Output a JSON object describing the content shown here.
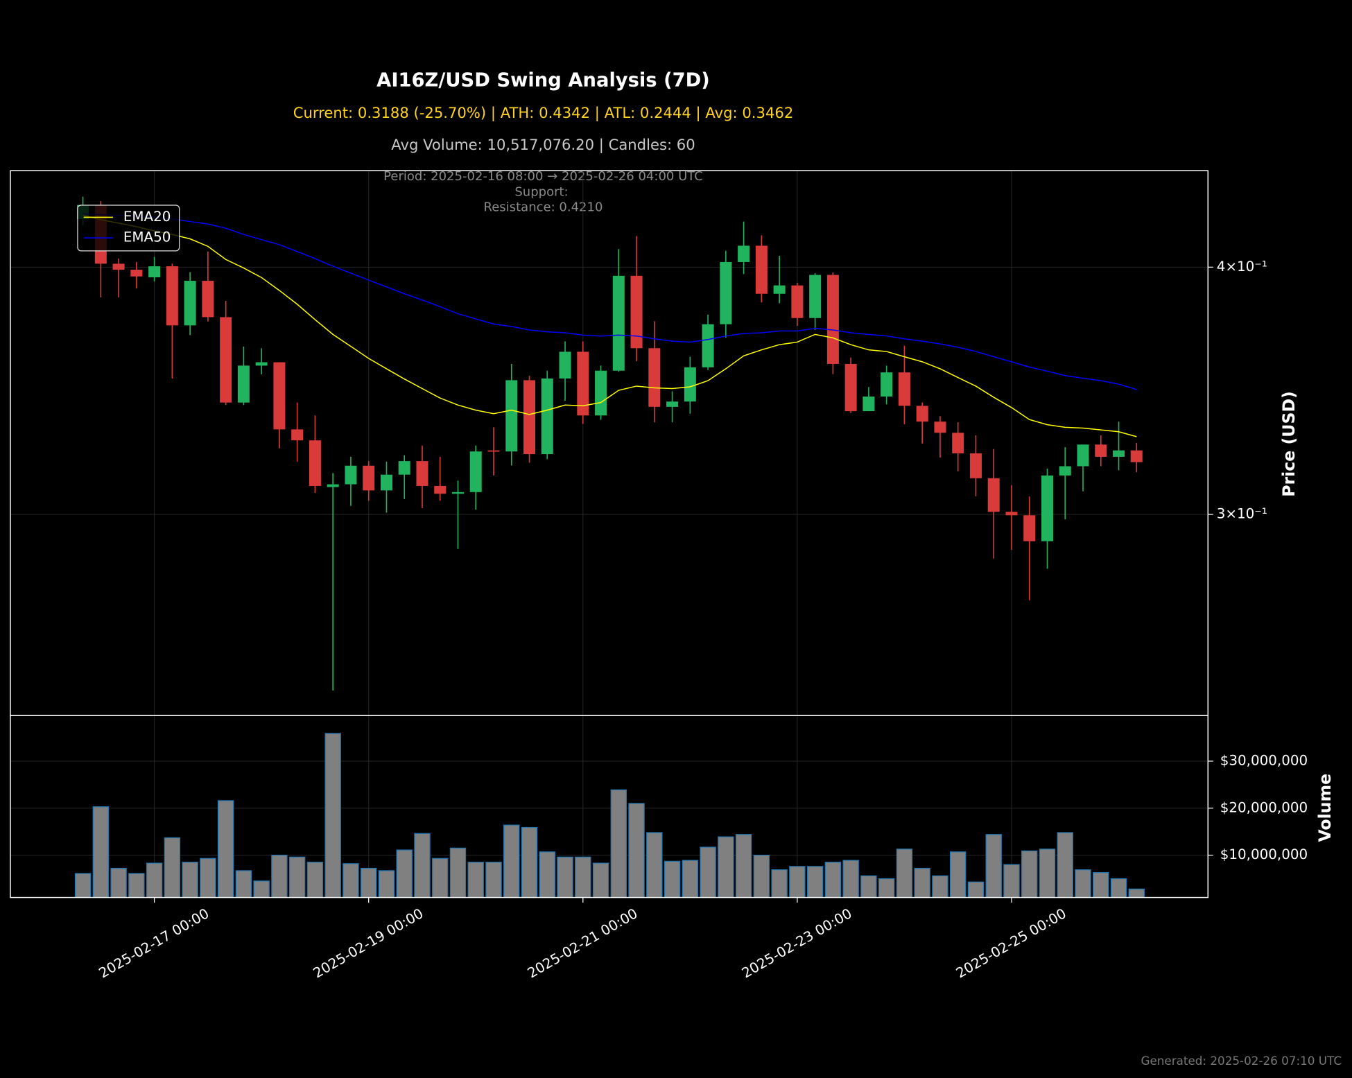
{
  "chart_data": {
    "type": "candlestick",
    "title": "AI16Z/USD Swing Analysis (7D)",
    "subtitle": "Current: 0.3188 (-25.70%) | ATH: 0.4342 | ATL: 0.2444 | Avg: 0.3462",
    "subtitle2": "Avg Volume: 10,517,076.20 | Candles: 60",
    "annotation": [
      "Period: 2025-02-16 08:00 → 2025-02-26 04:00 UTC",
      "Support:",
      "Resistance: 0.4210"
    ],
    "ylabel": "Price (USD)",
    "x": [
      "2025-02-16 08:00",
      "2025-02-16 12:00",
      "2025-02-16 16:00",
      "2025-02-16 20:00",
      "2025-02-17 00:00",
      "2025-02-17 04:00",
      "2025-02-17 08:00",
      "2025-02-17 12:00",
      "2025-02-17 16:00",
      "2025-02-17 20:00",
      "2025-02-18 00:00",
      "2025-02-18 04:00",
      "2025-02-18 08:00",
      "2025-02-18 12:00",
      "2025-02-18 16:00",
      "2025-02-18 20:00",
      "2025-02-19 00:00",
      "2025-02-19 04:00",
      "2025-02-19 08:00",
      "2025-02-19 12:00",
      "2025-02-19 16:00",
      "2025-02-19 20:00",
      "2025-02-20 00:00",
      "2025-02-20 04:00",
      "2025-02-20 08:00",
      "2025-02-20 12:00",
      "2025-02-20 16:00",
      "2025-02-20 20:00",
      "2025-02-21 00:00",
      "2025-02-21 04:00",
      "2025-02-21 08:00",
      "2025-02-21 12:00",
      "2025-02-21 16:00",
      "2025-02-21 20:00",
      "2025-02-22 00:00",
      "2025-02-22 04:00",
      "2025-02-22 08:00",
      "2025-02-22 12:00",
      "2025-02-22 16:00",
      "2025-02-22 20:00",
      "2025-02-23 00:00",
      "2025-02-23 04:00",
      "2025-02-23 08:00",
      "2025-02-23 12:00",
      "2025-02-23 16:00",
      "2025-02-23 20:00",
      "2025-02-24 00:00",
      "2025-02-24 04:00",
      "2025-02-24 08:00",
      "2025-02-24 12:00",
      "2025-02-24 16:00",
      "2025-02-24 20:00",
      "2025-02-25 00:00",
      "2025-02-25 04:00",
      "2025-02-25 08:00",
      "2025-02-25 12:00",
      "2025-02-25 16:00",
      "2025-02-25 20:00",
      "2025-02-26 00:00",
      "2025-02-26 04:00"
    ],
    "open": [
      0.423,
      0.43,
      0.4016,
      0.3988,
      0.3953,
      0.4004,
      0.3738,
      0.3937,
      0.3774,
      0.3417,
      0.3567,
      0.3581,
      0.3312,
      0.327,
      0.3097,
      0.3107,
      0.3175,
      0.3085,
      0.3142,
      0.3192,
      0.3101,
      0.3073,
      0.3079,
      0.3232,
      0.3228,
      0.3507,
      0.3218,
      0.3514,
      0.3625,
      0.3366,
      0.3546,
      0.396,
      0.364,
      0.34,
      0.3421,
      0.356,
      0.3743,
      0.4024,
      0.4101,
      0.3878,
      0.3916,
      0.377,
      0.3964,
      0.3574,
      0.3383,
      0.3441,
      0.3539,
      0.3404,
      0.3342,
      0.3299,
      0.3221,
      0.3129,
      0.3009,
      0.2997,
      0.2908,
      0.3139,
      0.3173,
      0.3254,
      0.3208,
      0.3232
    ],
    "high": [
      0.4342,
      0.432,
      0.404,
      0.4024,
      0.4048,
      0.4016,
      0.3977,
      0.4073,
      0.3846,
      0.3647,
      0.364,
      0.3581,
      0.3417,
      0.3366,
      0.3148,
      0.3208,
      0.3192,
      0.319,
      0.3214,
      0.325,
      0.3208,
      0.312,
      0.325,
      0.332,
      0.3574,
      0.3525,
      0.3546,
      0.3669,
      0.3669,
      0.3567,
      0.4085,
      0.4147,
      0.3756,
      0.3462,
      0.3604,
      0.3785,
      0.4077,
      0.4218,
      0.4151,
      0.4053,
      0.3928,
      0.3972,
      0.3976,
      0.3601,
      0.3479,
      0.3567,
      0.3651,
      0.3417,
      0.3363,
      0.3339,
      0.3289,
      0.3237,
      0.3104,
      0.3063,
      0.3164,
      0.3244,
      0.3254,
      0.3289,
      0.3342,
      0.326
    ],
    "low": [
      0.42,
      0.3862,
      0.3862,
      0.3902,
      0.3934,
      0.3514,
      0.3696,
      0.3755,
      0.3407,
      0.3407,
      0.3531,
      0.324,
      0.319,
      0.3076,
      0.2444,
      0.303,
      0.3048,
      0.3006,
      0.3054,
      0.3022,
      0.3048,
      0.2882,
      0.3016,
      0.3139,
      0.3176,
      0.3186,
      0.3199,
      0.3424,
      0.3333,
      0.3349,
      0.3542,
      0.3585,
      0.3339,
      0.3339,
      0.3373,
      0.3549,
      0.3685,
      0.3968,
      0.3839,
      0.3835,
      0.3736,
      0.3718,
      0.3532,
      0.3376,
      0.3383,
      0.341,
      0.3332,
      0.3258,
      0.3205,
      0.3154,
      0.3064,
      0.285,
      0.2879,
      0.2715,
      0.2816,
      0.2983,
      0.3082,
      0.3173,
      0.3158,
      0.3151
    ],
    "close": [
      0.43,
      0.4016,
      0.3988,
      0.3957,
      0.4004,
      0.3738,
      0.3937,
      0.3774,
      0.3417,
      0.3567,
      0.3581,
      0.3312,
      0.327,
      0.3101,
      0.3107,
      0.3175,
      0.3085,
      0.3142,
      0.3192,
      0.3101,
      0.3073,
      0.3079,
      0.3228,
      0.3228,
      0.3507,
      0.3218,
      0.3514,
      0.3625,
      0.3366,
      0.3546,
      0.396,
      0.364,
      0.34,
      0.3421,
      0.356,
      0.3743,
      0.4024,
      0.4101,
      0.3878,
      0.3916,
      0.377,
      0.3964,
      0.3574,
      0.3383,
      0.3441,
      0.3539,
      0.3404,
      0.3342,
      0.3299,
      0.3221,
      0.3129,
      0.3009,
      0.2997,
      0.2908,
      0.3139,
      0.3173,
      0.3254,
      0.3208,
      0.3232,
      0.3188
    ],
    "up_color": "#22b35e",
    "down_color": "#d93a3a",
    "series": [
      {
        "name": "EMA20",
        "color": "#ffff00",
        "values": [
          0.4248,
          0.4227,
          0.421,
          0.4193,
          0.4172,
          0.4155,
          0.4134,
          0.4098,
          0.4036,
          0.3996,
          0.3952,
          0.3893,
          0.3831,
          0.3763,
          0.3699,
          0.3648,
          0.3597,
          0.3554,
          0.3512,
          0.3473,
          0.3435,
          0.3407,
          0.3387,
          0.3373,
          0.3387,
          0.337,
          0.3387,
          0.3407,
          0.3404,
          0.3417,
          0.3466,
          0.3483,
          0.3476,
          0.3473,
          0.348,
          0.3505,
          0.3554,
          0.3608,
          0.3633,
          0.3655,
          0.3666,
          0.3699,
          0.3684,
          0.3655,
          0.3633,
          0.3626,
          0.3604,
          0.3583,
          0.3554,
          0.3518,
          0.3483,
          0.3438,
          0.3397,
          0.335,
          0.333,
          0.332,
          0.3317,
          0.331,
          0.3303,
          0.3284
        ]
      },
      {
        "name": "EMA50",
        "color": "#0000ff",
        "values": [
          0.4256,
          0.4252,
          0.4248,
          0.4244,
          0.424,
          0.4231,
          0.4218,
          0.4206,
          0.4185,
          0.4155,
          0.413,
          0.4106,
          0.4073,
          0.404,
          0.4004,
          0.3972,
          0.394,
          0.3909,
          0.3878,
          0.385,
          0.382,
          0.3789,
          0.3766,
          0.3744,
          0.3733,
          0.3718,
          0.371,
          0.3706,
          0.3696,
          0.3692,
          0.3696,
          0.3692,
          0.368,
          0.367,
          0.3666,
          0.3677,
          0.3692,
          0.3703,
          0.3706,
          0.3714,
          0.3714,
          0.3725,
          0.3718,
          0.3706,
          0.3699,
          0.3692,
          0.368,
          0.367,
          0.3658,
          0.3644,
          0.3626,
          0.3604,
          0.3583,
          0.3561,
          0.3544,
          0.3526,
          0.3515,
          0.3505,
          0.3491,
          0.3469
        ]
      }
    ],
    "xlim": [
      "2025-02-15 15:45",
      "2025-02-26 20:00"
    ],
    "xticks": [
      "2025-02-17 00:00",
      "2025-02-19 00:00",
      "2025-02-21 00:00",
      "2025-02-23 00:00",
      "2025-02-25 00:00"
    ],
    "ylim": [
      0.2374,
      0.4475
    ],
    "log_y": true,
    "yticks": [
      {
        "value": 0.3,
        "label": "3×10⁻¹"
      },
      {
        "value": 0.4,
        "label": "4×10⁻¹"
      }
    ],
    "grid": true,
    "legend": "upper left",
    "volume": {
      "ylabel": "Volume",
      "color": "#808080",
      "edge_color": "#1f77b4",
      "values": [
        6100000,
        20300000,
        7200000,
        6100000,
        8300000,
        13700000,
        8500000,
        9300000,
        21600000,
        6700000,
        4500000,
        10000000,
        9600000,
        8500000,
        35900000,
        8200000,
        7200000,
        6700000,
        11100000,
        14600000,
        9300000,
        11500000,
        8500000,
        8500000,
        16400000,
        15900000,
        10700000,
        9600000,
        9600000,
        8300000,
        23900000,
        21000000,
        14800000,
        8700000,
        8900000,
        11700000,
        13900000,
        14400000,
        10000000,
        6900000,
        7600000,
        7600000,
        8500000,
        8900000,
        5600000,
        5000000,
        11300000,
        7200000,
        5600000,
        10700000,
        4300000,
        14400000,
        8000000,
        10900000,
        11300000,
        14800000,
        6900000,
        6300000,
        5000000,
        2800000
      ],
      "ylim": [
        1000000,
        39700000
      ],
      "yticks": [
        {
          "value": 10000000,
          "label": "$10,000,000"
        },
        {
          "value": 20000000,
          "label": "$20,000,000"
        },
        {
          "value": 30000000,
          "label": "$30,000,000"
        }
      ]
    }
  },
  "footer": "Generated: 2025-02-26 07:10 UTC"
}
